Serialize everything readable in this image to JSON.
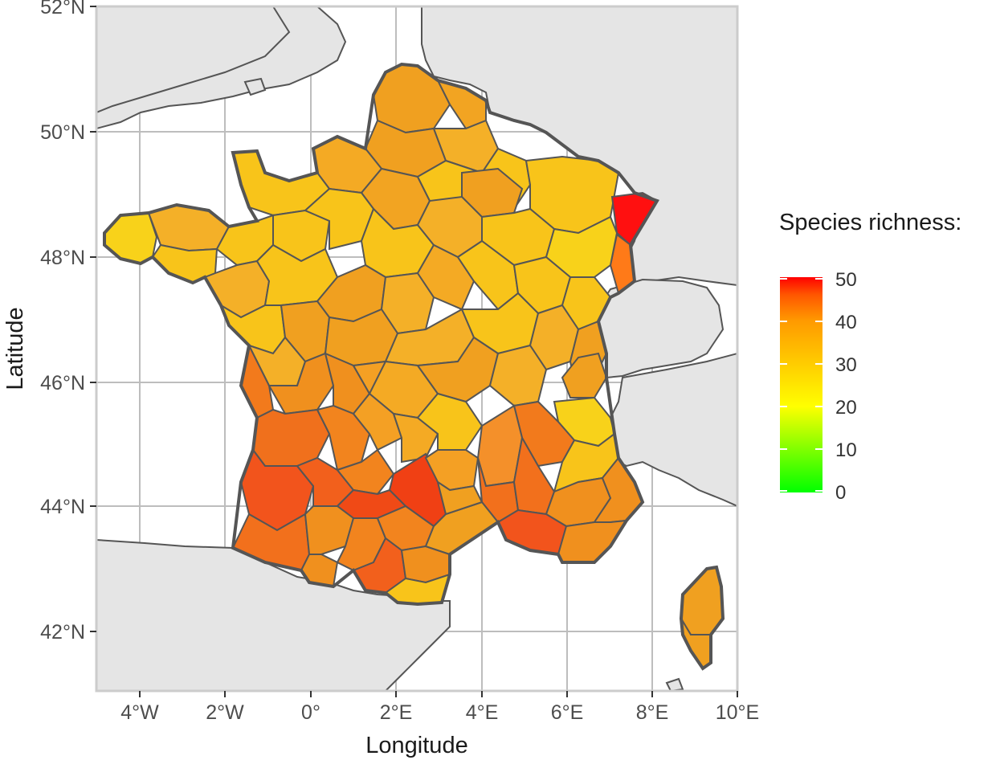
{
  "map": {
    "x_axis": {
      "title": "Longitude",
      "ticks": [
        "4°W",
        "2°W",
        "0°",
        "2°E",
        "4°E",
        "6°E",
        "8°E",
        "10°E"
      ]
    },
    "y_axis": {
      "title": "Latitude",
      "ticks": [
        "52°N",
        "50°N",
        "48°N",
        "46°N",
        "44°N",
        "42°N"
      ]
    },
    "extent": {
      "lon": [
        -5.2,
        10.0
      ],
      "lat": [
        41.0,
        52.0
      ]
    },
    "grid": true,
    "colors": {
      "land_other": "#e5e5e5",
      "panel_bg": "#ffffff",
      "grid": "#bdbdbd",
      "border": "#555555"
    },
    "regions_shown": [
      "France (departments, colored)",
      "Corsica",
      "United Kingdom",
      "Belgium",
      "Netherlands",
      "Germany",
      "Switzerland",
      "Italy",
      "Spain"
    ]
  },
  "legend": {
    "title": "Species richness:",
    "ticks": [
      "50",
      "40",
      "30",
      "20",
      "10",
      "0"
    ],
    "range": [
      0,
      50
    ],
    "position": "right",
    "gradient": [
      "#00ff00",
      "#ffff00",
      "#ffcc00",
      "#ff9900",
      "#ff5500",
      "#ff0000"
    ]
  }
}
